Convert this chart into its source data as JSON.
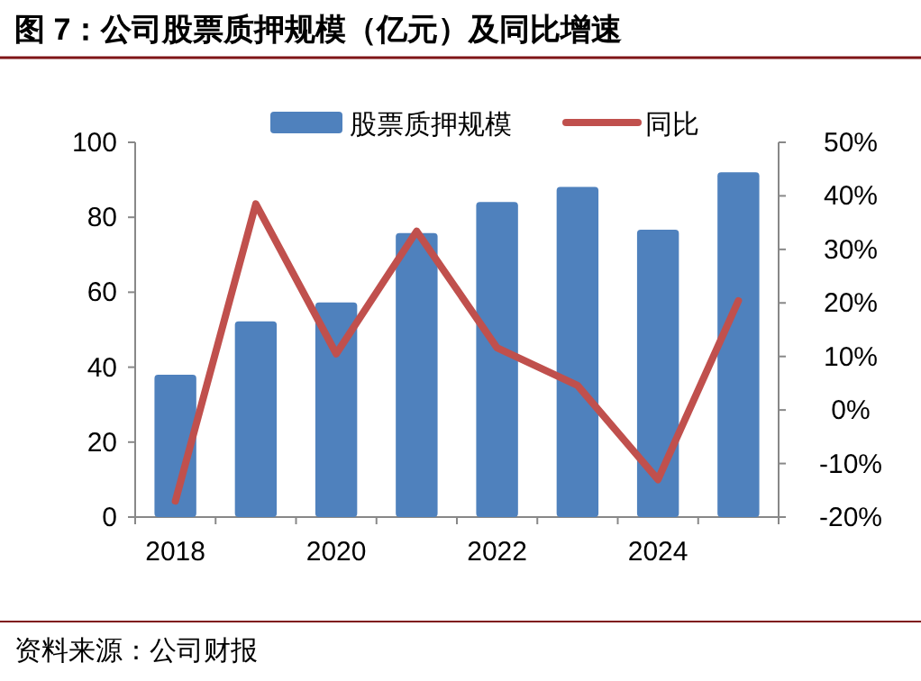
{
  "chart_data": {
    "type": "bar",
    "title": "图 7：公司股票质押规模（亿元）及同比增速",
    "categories": [
      "2018",
      null,
      "2020",
      null,
      "2022",
      null,
      "2024",
      null
    ],
    "series": [
      {
        "name": "股票质押规模",
        "color": "#4f81bd",
        "values": [
          38,
          52.2,
          57.3,
          75.8,
          84.1,
          88.1,
          76.7,
          92
        ]
      },
      {
        "name": "同比",
        "type": "line",
        "axis": "y2",
        "color": "#c0504d",
        "values": [
          -17,
          38.5,
          10.5,
          33.4,
          11.6,
          4.6,
          -13,
          20.4
        ]
      }
    ],
    "ylim": [
      0,
      100
    ],
    "yticks": [
      0,
      20,
      40,
      60,
      80,
      100
    ],
    "y2lim": [
      -20,
      50
    ],
    "y2ticks": [
      {
        "value": -20,
        "label": "-20%"
      },
      {
        "value": -10,
        "label": "-10%"
      },
      {
        "value": 0,
        "label": "0%"
      },
      {
        "value": 10,
        "label": "10%"
      },
      {
        "value": 20,
        "label": "20%"
      },
      {
        "value": 30,
        "label": "30%"
      },
      {
        "value": 40,
        "label": "40%"
      },
      {
        "value": 50,
        "label": "50%"
      }
    ],
    "legend": "top",
    "marker": "none",
    "line_style": "solid",
    "annotations": [
      "资料来源：公司财报"
    ]
  }
}
